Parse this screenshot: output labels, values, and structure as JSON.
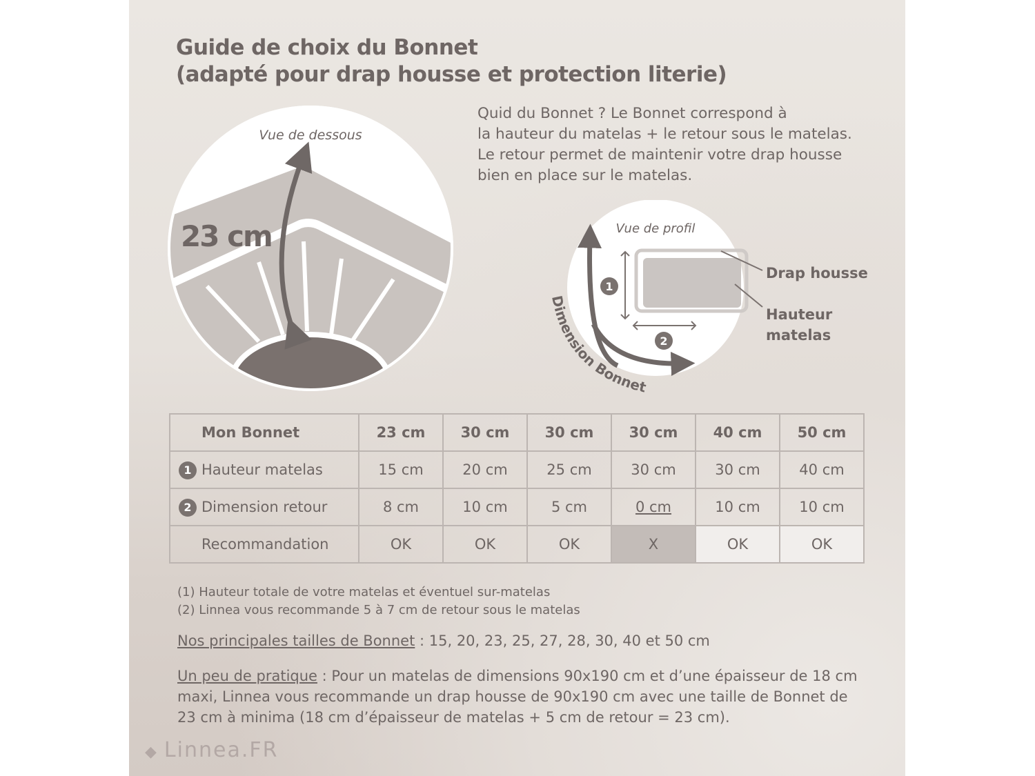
{
  "title": {
    "line1": "Guide de choix du Bonnet",
    "line2": "(adapté pour drap housse et protection literie)"
  },
  "intro": [
    "Quid du Bonnet ? Le Bonnet correspond à",
    "la hauteur du matelas + le retour sous le matelas.",
    "Le retour permet de maintenir votre drap housse",
    "bien en place sur le matelas."
  ],
  "diagram_bottom": {
    "caption": "Vue de dessous",
    "measure": "23 cm"
  },
  "diagram_profile": {
    "caption": "Vue de profil",
    "label_sheet": "Drap housse",
    "label_height_1": "Hauteur",
    "label_height_2": "matelas",
    "arc_label": "Dimension Bonnet",
    "marker1": "1",
    "marker2": "2"
  },
  "table": {
    "header": [
      "Mon Bonnet",
      "23 cm",
      "30 cm",
      "30 cm",
      "30 cm",
      "40 cm",
      "50 cm"
    ],
    "rows": [
      {
        "num": "1",
        "label": "Hauteur matelas",
        "values": [
          "15 cm",
          "20 cm",
          "25 cm",
          "30 cm",
          "30 cm",
          "40 cm"
        ]
      },
      {
        "num": "2",
        "label": "Dimension retour",
        "values": [
          "8 cm",
          "10 cm",
          "5 cm",
          "0 cm",
          "10 cm",
          "10 cm"
        ]
      },
      {
        "num": "",
        "label": "Recommandation",
        "values": [
          "OK",
          "OK",
          "OK",
          "X",
          "OK",
          "OK"
        ]
      }
    ]
  },
  "notes": [
    "(1) Hauteur totale de votre matelas et éventuel sur-matelas",
    "(2) Linnea vous recommande 5 à 7 cm de retour sous le matelas"
  ],
  "sizes": {
    "label": "Nos principales tailles de Bonnet",
    "text": " : 15, 20, 23, 25, 27, 28, 30, 40 et 50 cm"
  },
  "practice": {
    "label": "Un peu de pratique",
    "text": " : Pour un matelas de dimensions 90x190 cm et d’une épaisseur de 18 cm maxi, Linnea vous recommande un drap housse de 90x190 cm avec une taille de Bonnet de 23 cm à minima (18 cm d’épaisseur de matelas + 5 cm de retour = 23 cm)."
  },
  "logo": "Linnea.FR",
  "colors": {
    "text": "#6e6664",
    "bad_cell": "#c3bcb8",
    "arrow": "#6f6866"
  }
}
